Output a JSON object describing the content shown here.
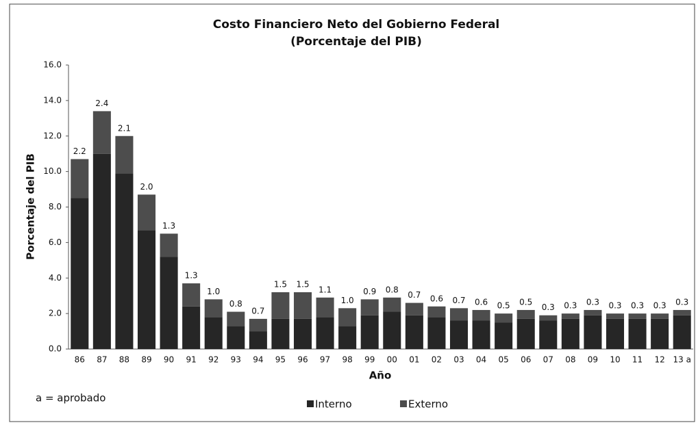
{
  "chart_data": {
    "type": "stacked_bar",
    "title": "Costo Financiero Neto del Gobierno Federal",
    "subtitle": "(Porcentaje del PIB)",
    "y_label": "Porcentaje del PIB",
    "x_label": "Año",
    "annotation": "a = aprobado",
    "categories": [
      "86",
      "87",
      "88",
      "89",
      "90",
      "91",
      "92",
      "93",
      "94",
      "95",
      "96",
      "97",
      "98",
      "99",
      "00",
      "01",
      "02",
      "03",
      "04",
      "05",
      "06",
      "07",
      "08",
      "09",
      "10",
      "11",
      "12",
      "13 a"
    ],
    "series": [
      {
        "name": "Interno",
        "color": "#262626",
        "values": [
          8.5,
          11.0,
          9.9,
          6.7,
          5.2,
          2.4,
          1.8,
          1.3,
          1.0,
          1.7,
          1.7,
          1.8,
          1.3,
          1.9,
          2.1,
          1.9,
          1.8,
          1.6,
          1.6,
          1.5,
          1.7,
          1.6,
          1.7,
          1.9,
          1.7,
          1.7,
          1.7,
          1.9
        ]
      },
      {
        "name": "Externo",
        "color": "#4d4d4d",
        "values": [
          2.2,
          2.4,
          2.1,
          2.0,
          1.3,
          1.3,
          1.0,
          0.8,
          0.7,
          1.5,
          1.5,
          1.1,
          1.0,
          0.9,
          0.8,
          0.7,
          0.6,
          0.7,
          0.6,
          0.5,
          0.5,
          0.3,
          0.3,
          0.3,
          0.3,
          0.3,
          0.3,
          0.3
        ],
        "value_labels": [
          "2.2",
          "2.4",
          "2.1",
          "2.0",
          "1.3",
          "1.3",
          "1.0",
          "0.8",
          "0.7",
          "1.5",
          "1.5",
          "1.1",
          "1.0",
          "0.9",
          "0.8",
          "0.7",
          "0.6",
          "0.7",
          "0.6",
          "0.5",
          "0.5",
          "0.3",
          "0.3",
          "0.3",
          "0.3",
          "0.3",
          "0.3",
          "0.3"
        ]
      }
    ],
    "ylim": [
      0,
      16
    ],
    "yticks": [
      {
        "value": 0,
        "label": "0.0"
      },
      {
        "value": 2,
        "label": "2.0"
      },
      {
        "value": 4,
        "label": "4.0"
      },
      {
        "value": 6,
        "label": "6.0"
      },
      {
        "value": 8,
        "label": "8.0"
      },
      {
        "value": 10,
        "label": "10.0"
      },
      {
        "value": 12,
        "label": "12.0"
      },
      {
        "value": 14,
        "label": "14.0"
      },
      {
        "value": 16,
        "label": "16.0"
      }
    ],
    "grid": false,
    "legend": "bottom"
  }
}
